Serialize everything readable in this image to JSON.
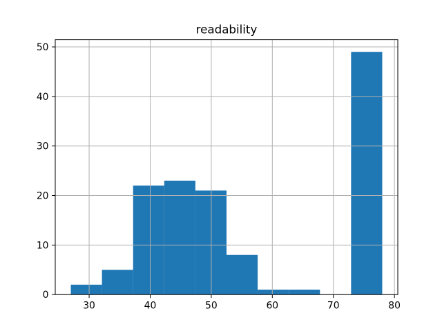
{
  "chart_data": {
    "type": "bar",
    "subtype": "histogram",
    "title": "readability",
    "bin_edges": [
      27.0,
      32.1,
      37.2,
      42.3,
      47.4,
      52.5,
      57.6,
      62.7,
      67.8,
      72.9,
      78.0
    ],
    "counts": [
      2,
      5,
      22,
      23,
      21,
      8,
      1,
      1,
      0,
      49
    ],
    "xticks": [
      30,
      40,
      50,
      60,
      70,
      80
    ],
    "yticks": [
      0,
      10,
      20,
      30,
      40,
      50
    ],
    "xlim": [
      24.45,
      80.55
    ],
    "ylim": [
      0,
      51.45
    ],
    "grid": true,
    "legend": false,
    "xlabel": "",
    "ylabel": "",
    "colors": {
      "bar": "#1f77b4",
      "grid": "#b0b0b0",
      "spine": "#000000",
      "background": "#ffffff"
    }
  }
}
